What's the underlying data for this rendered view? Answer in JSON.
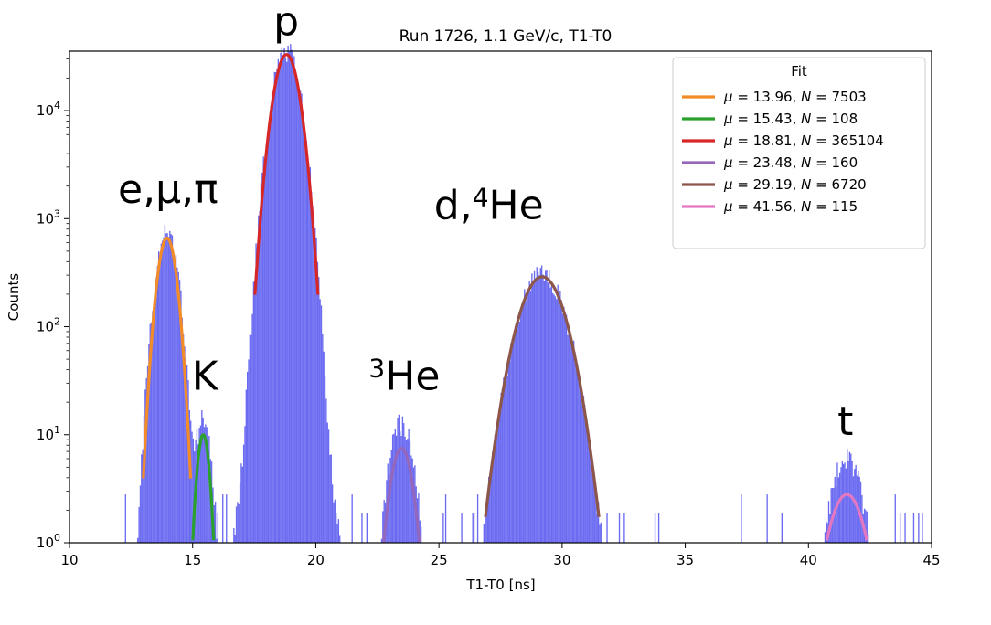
{
  "chart_data": {
    "type": "histogram",
    "title": "Run 1726, 1.1 GeV/c, T1-T0",
    "xlabel": "T1-T0 [ns]",
    "ylabel": "Counts",
    "xlim": [
      10,
      45
    ],
    "ylim_log10": [
      0,
      4.55
    ],
    "yscale": "log",
    "grid": false,
    "x_ticks": [
      "10",
      "15",
      "20",
      "25",
      "30",
      "35",
      "40",
      "45"
    ],
    "x_tick_values": [
      10,
      15,
      20,
      25,
      30,
      35,
      40,
      45
    ],
    "y_ticks": [
      {
        "value": 1,
        "base": "10",
        "exp": "0"
      },
      {
        "value": 10,
        "base": "10",
        "exp": "1"
      },
      {
        "value": 100,
        "base": "10",
        "exp": "2"
      },
      {
        "value": 1000,
        "base": "10",
        "exp": "3"
      },
      {
        "value": 10000,
        "base": "10",
        "exp": "4"
      }
    ],
    "histogram_color": "#5b5bf0",
    "histogram_peaks": [
      {
        "mu": 13.96,
        "sigma": 0.33,
        "peak": 780
      },
      {
        "mu": 15.43,
        "sigma": 0.25,
        "peak": 14
      },
      {
        "mu": 18.81,
        "sigma": 0.42,
        "peak": 36000
      },
      {
        "mu": 23.48,
        "sigma": 0.38,
        "peak": 13
      },
      {
        "mu": 29.19,
        "sigma": 0.72,
        "peak": 300
      },
      {
        "mu": 41.56,
        "sigma": 0.5,
        "peak": 6
      }
    ],
    "legend": {
      "title": "Fit",
      "placement": "top-right",
      "entries": [
        {
          "label_mu": "13.96",
          "label_n": "7503",
          "color": "#f28c28"
        },
        {
          "label_mu": "15.43",
          "label_n": "108",
          "color": "#2ca02c"
        },
        {
          "label_mu": "18.81",
          "label_n": "365104",
          "color": "#d62728"
        },
        {
          "label_mu": "23.48",
          "label_n": "160",
          "color": "#9467bd"
        },
        {
          "label_mu": "29.19",
          "label_n": "6720",
          "color": "#8c564b"
        },
        {
          "label_mu": "41.56",
          "label_n": "115",
          "color": "#e377c2"
        }
      ]
    },
    "series": [
      {
        "mu": 13.96,
        "sigma": 0.3,
        "amplitude": 660,
        "color": "#f28c28"
      },
      {
        "mu": 15.43,
        "sigma": 0.2,
        "amplitude": 10,
        "color": "#2ca02c"
      },
      {
        "mu": 18.81,
        "sigma": 0.4,
        "amplitude": 33000,
        "color": "#d62728"
      },
      {
        "mu": 23.48,
        "sigma": 0.36,
        "amplitude": 7.5,
        "color": "#9467bd"
      },
      {
        "mu": 29.19,
        "sigma": 0.72,
        "amplitude": 290,
        "color": "#8c564b"
      },
      {
        "mu": 41.56,
        "sigma": 0.58,
        "amplitude": 2.8,
        "color": "#e377c2"
      }
    ],
    "annotations": [
      {
        "text": "p",
        "x": 18.8,
        "y": 50000
      },
      {
        "text": "e,μ,π",
        "x": 14.0,
        "y": 1400
      },
      {
        "text": "d,",
        "x": 27.4,
        "y": 1000
      },
      {
        "text": "K",
        "x": 15.5,
        "y": 26
      },
      {
        "text": "He",
        "x": 23.6,
        "y": 26,
        "sup": "3"
      },
      {
        "text": "t",
        "x": 41.5,
        "y": 10
      }
    ],
    "annotation_d4he": {
      "prefix": "d,",
      "sup": "4",
      "suffix": "He"
    }
  }
}
